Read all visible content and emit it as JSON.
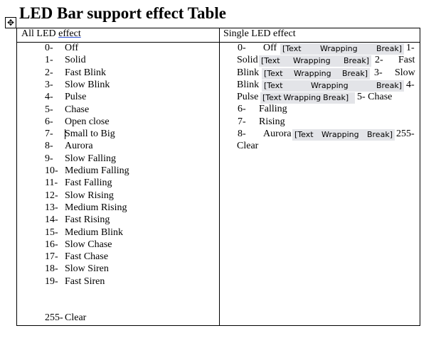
{
  "title": "LED Bar support effect Table",
  "headers": {
    "all_prefix": "All LED",
    "all_link": "effect",
    "single": "Single LED effect"
  },
  "all_effects": [
    {
      "n": "0-",
      "l": "Off"
    },
    {
      "n": "1-",
      "l": "Solid"
    },
    {
      "n": "2-",
      "l": "Fast Blink"
    },
    {
      "n": "3-",
      "l": "Slow Blink"
    },
    {
      "n": "4-",
      "l": "Pulse"
    },
    {
      "n": "5-",
      "l": "Chase"
    },
    {
      "n": "6-",
      "l": "Open close"
    },
    {
      "n": "7-",
      "l": "Small to Big"
    },
    {
      "n": "8-",
      "l": "Aurora"
    },
    {
      "n": "9-",
      "l": "Slow Falling"
    },
    {
      "n": "10-",
      "l": "Medium Falling"
    },
    {
      "n": "11-",
      "l": "Fast Falling"
    },
    {
      "n": "12-",
      "l": "Slow Rising"
    },
    {
      "n": "13-",
      "l": "Medium Rising"
    },
    {
      "n": "14-",
      "l": "Fast Rising"
    },
    {
      "n": "15-",
      "l": "Medium Blink"
    },
    {
      "n": "16-",
      "l": "Slow Chase"
    },
    {
      "n": "17-",
      "l": "Fast Chase"
    },
    {
      "n": "18-",
      "l": "Slow Siren"
    },
    {
      "n": "19-",
      "l": "Fast Siren"
    }
  ],
  "all_clear": {
    "n": "255-",
    "l": "Clear"
  },
  "break_words": [
    "[Text",
    "Wrapping",
    "Break]"
  ],
  "single": {
    "l1": [
      "0-",
      "Off",
      "1-"
    ],
    "l2": [
      "Solid",
      "2-",
      "Fast"
    ],
    "l3": [
      "Blink",
      "3-",
      "Slow"
    ],
    "l4": [
      "Blink",
      "4-"
    ],
    "l5": [
      "Pulse",
      "5- Chase"
    ],
    "l6": [
      "6-",
      "Falling"
    ],
    "l7": [
      "7-",
      "Rising"
    ],
    "l8": [
      "8-",
      "Aurora",
      "255-"
    ],
    "l9": [
      "Clear"
    ]
  }
}
